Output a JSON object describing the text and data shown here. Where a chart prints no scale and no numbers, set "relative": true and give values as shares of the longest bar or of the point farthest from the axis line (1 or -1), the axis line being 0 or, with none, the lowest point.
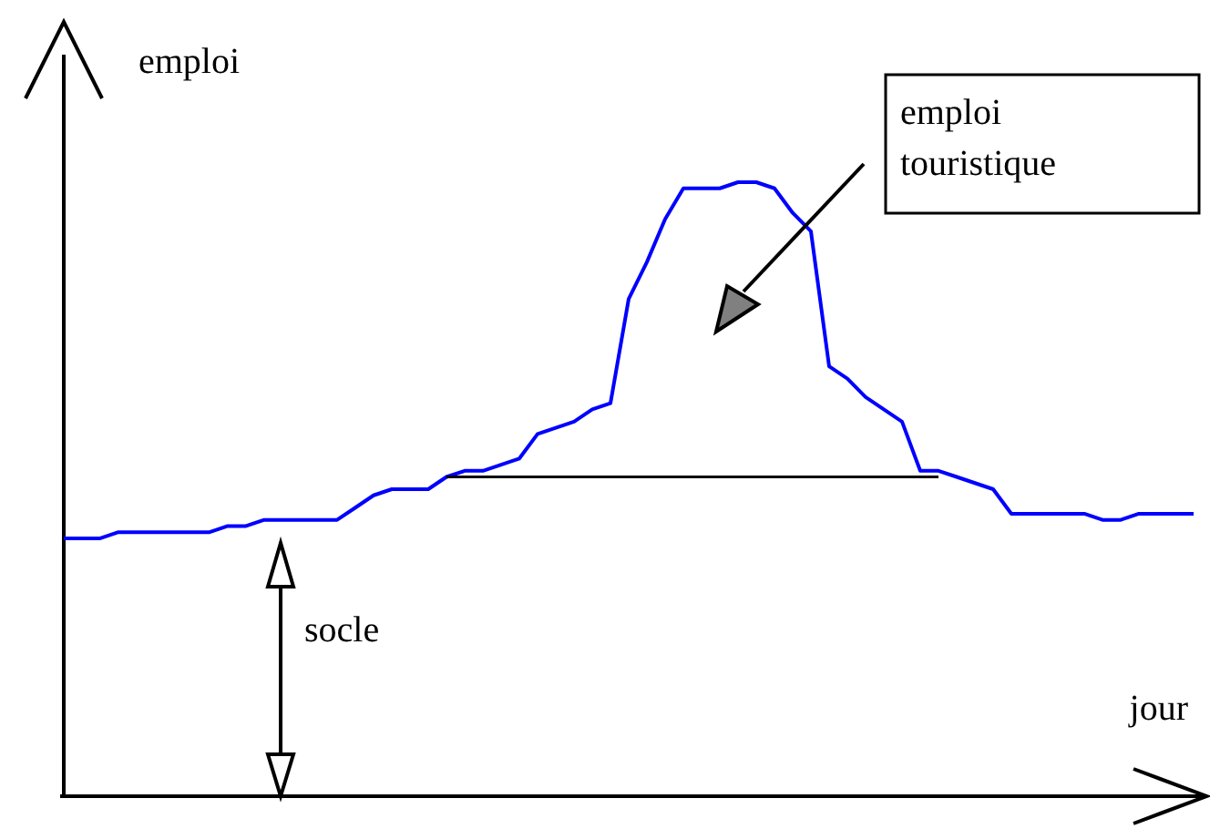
{
  "chart_data": {
    "type": "line",
    "relative": true,
    "xlabel": "jour",
    "ylabel": "emploi",
    "annotations": [
      "socle",
      "emploi touristique"
    ],
    "categories": [
      null,
      null,
      null,
      null,
      null,
      null,
      null,
      null,
      null,
      null,
      null,
      null,
      null,
      null,
      null,
      null,
      null,
      null,
      null,
      null,
      null,
      null,
      null,
      null,
      null,
      null,
      null,
      null,
      null,
      null,
      null,
      null,
      null,
      null,
      null,
      null,
      null,
      null,
      null,
      null,
      null,
      null,
      null,
      null,
      null,
      null,
      null,
      null,
      null,
      null,
      null,
      null,
      null,
      null,
      null,
      null,
      null,
      null,
      null,
      null,
      null,
      null,
      null
    ],
    "series": [
      {
        "color": "#0000ff",
        "values": [
          0.42,
          0.42,
          0.42,
          0.43,
          0.43,
          0.43,
          0.43,
          0.43,
          0.43,
          0.44,
          0.44,
          0.45,
          0.45,
          0.45,
          0.45,
          0.45,
          0.47,
          0.49,
          0.5,
          0.5,
          0.5,
          0.52,
          0.53,
          0.53,
          0.54,
          0.55,
          0.59,
          0.6,
          0.61,
          0.63,
          0.64,
          0.81,
          0.87,
          0.94,
          0.99,
          0.99,
          0.99,
          1,
          1,
          0.99,
          0.95,
          0.92,
          0.7,
          0.68,
          0.65,
          0.63,
          0.61,
          0.53,
          0.53,
          0.52,
          0.51,
          0.5,
          0.46,
          0.46,
          0.46,
          0.46,
          0.46,
          0.45,
          0.45,
          0.46,
          0.46,
          0.46,
          0.46
        ]
      },
      {
        "color": "#000000",
        "values": [
          null,
          null,
          null,
          null,
          null,
          null,
          null,
          null,
          null,
          null,
          null,
          null,
          null,
          null,
          null,
          null,
          null,
          null,
          null,
          null,
          null,
          0.52,
          0.52,
          0.52,
          0.52,
          0.52,
          0.52,
          0.52,
          0.52,
          0.52,
          0.52,
          0.52,
          0.52,
          0.52,
          0.52,
          0.52,
          0.52,
          0.52,
          0.52,
          0.52,
          0.52,
          0.52,
          0.52,
          0.52,
          0.52,
          0.52,
          0.52,
          0.52,
          0.52,
          null,
          null,
          null,
          null,
          null,
          null,
          null,
          null,
          null,
          null,
          null,
          null,
          null,
          null
        ]
      }
    ]
  }
}
